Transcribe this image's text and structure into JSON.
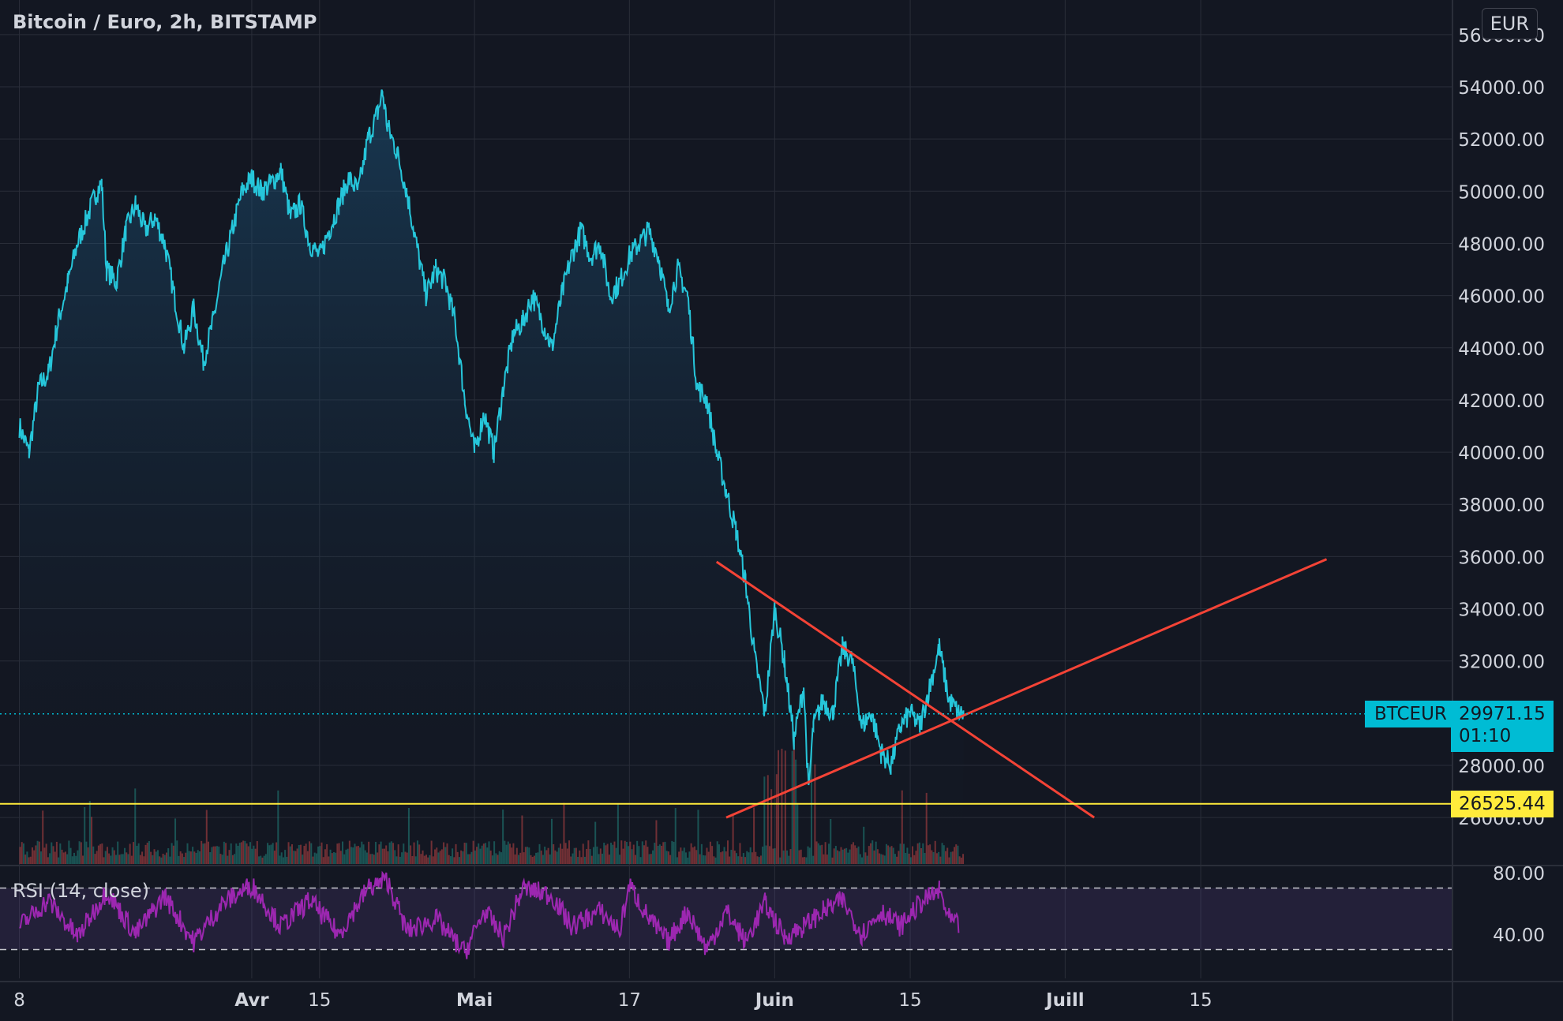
{
  "title": "Bitcoin / Euro, 2h, BITSTAMP",
  "currency": "EUR",
  "symbol": "BTCEUR",
  "rsi_label": "RSI (14, close)",
  "current_price": {
    "value": "29971.15",
    "countdown": "01:10",
    "color": "#00bcd4"
  },
  "support_level": {
    "value": "26525.44",
    "color": "#ffeb3b"
  },
  "colors": {
    "price_line": "#26c6da",
    "trendline": "#f44336",
    "rsi_line": "#9c27b0",
    "background": "#131722",
    "grid": "#2a2e39"
  },
  "chart_data": [
    {
      "type": "line",
      "series": [
        {
          "name": "BTCEUR",
          "values": "price"
        }
      ],
      "y_axis": {
        "ticks": [
          "54000.00",
          "52000.00",
          "50000.00",
          "48000.00",
          "46000.00",
          "44000.00",
          "42000.00",
          "40000.00",
          "38000.00",
          "36000.00",
          "34000.00",
          "32000.00",
          "28000.00"
        ],
        "range": [
          25000,
          56000
        ],
        "top_tick": "56000.00",
        "bottom_tick": "26000.00"
      },
      "x_axis": {
        "ticks": [
          "8",
          "Avr",
          "15",
          "Mai",
          "17",
          "Juin",
          "15",
          "Juill",
          "15"
        ]
      },
      "x_tick_days": [
        0,
        24,
        31,
        47,
        63,
        78,
        92,
        108,
        122
      ],
      "x_range_days": [
        -2,
        148
      ],
      "keypoints": [
        [
          0,
          41000
        ],
        [
          1,
          40000
        ],
        [
          2,
          42500
        ],
        [
          3,
          43000
        ],
        [
          4,
          45000
        ],
        [
          5,
          46500
        ],
        [
          6,
          48000
        ],
        [
          7,
          49000
        ],
        [
          8,
          50000
        ],
        [
          8.5,
          50300
        ],
        [
          9,
          47000
        ],
        [
          10,
          46500
        ],
        [
          11,
          48500
        ],
        [
          12,
          49500
        ],
        [
          13,
          48500
        ],
        [
          14,
          49000
        ],
        [
          15,
          48000
        ],
        [
          16,
          46000
        ],
        [
          17,
          44000
        ],
        [
          18,
          45500
        ],
        [
          19,
          43500
        ],
        [
          20,
          45000
        ],
        [
          21,
          47000
        ],
        [
          22,
          48500
        ],
        [
          23,
          50000
        ],
        [
          24,
          50500
        ],
        [
          25,
          50000
        ],
        [
          26,
          50300
        ],
        [
          27,
          50800
        ],
        [
          28,
          49000
        ],
        [
          29,
          49500
        ],
        [
          30,
          48000
        ],
        [
          31,
          47500
        ],
        [
          32,
          48500
        ],
        [
          33,
          49500
        ],
        [
          34,
          50500
        ],
        [
          35,
          50000
        ],
        [
          36,
          52000
        ],
        [
          37,
          53000
        ],
        [
          37.5,
          53800
        ],
        [
          38,
          52500
        ],
        [
          39,
          51500
        ],
        [
          40,
          50000
        ],
        [
          41,
          48000
        ],
        [
          42,
          46000
        ],
        [
          43,
          47000
        ],
        [
          44,
          46500
        ],
        [
          45,
          45000
        ],
        [
          46,
          42000
        ],
        [
          47,
          40000
        ],
        [
          48,
          41500
        ],
        [
          49,
          40000
        ],
        [
          50,
          42500
        ],
        [
          51,
          44500
        ],
        [
          52,
          45000
        ],
        [
          53,
          46000
        ],
        [
          54,
          45000
        ],
        [
          55,
          44000
        ],
        [
          56,
          46000
        ],
        [
          57,
          47500
        ],
        [
          58,
          48500
        ],
        [
          59,
          47500
        ],
        [
          60,
          48000
        ],
        [
          61,
          46000
        ],
        [
          62,
          46500
        ],
        [
          63,
          47500
        ],
        [
          64,
          48000
        ],
        [
          65,
          48500
        ],
        [
          66,
          47500
        ],
        [
          67,
          45500
        ],
        [
          68,
          47000
        ],
        [
          69,
          46000
        ],
        [
          70,
          42500
        ],
        [
          71,
          42000
        ],
        [
          72,
          40000
        ],
        [
          73,
          38500
        ],
        [
          74,
          37000
        ],
        [
          75,
          35000
        ],
        [
          76,
          32000
        ],
        [
          77,
          30000
        ],
        [
          78,
          34000
        ],
        [
          79,
          32000
        ],
        [
          80,
          29000
        ],
        [
          81,
          31000
        ],
        [
          81.5,
          27000
        ],
        [
          82,
          29500
        ],
        [
          83,
          30500
        ],
        [
          84,
          30000
        ],
        [
          85,
          32500
        ],
        [
          86,
          32000
        ],
        [
          87,
          29500
        ],
        [
          88,
          30000
        ],
        [
          89,
          28500
        ],
        [
          90,
          28000
        ],
        [
          91,
          29500
        ],
        [
          92,
          30000
        ],
        [
          93,
          29500
        ],
        [
          94,
          31000
        ],
        [
          95,
          32500
        ],
        [
          96,
          30500
        ],
        [
          97,
          30000
        ],
        [
          97.5,
          29971.15
        ]
      ],
      "trendlines": [
        {
          "from": [
            72,
            35800
          ],
          "to": [
            111,
            26000
          ]
        },
        {
          "from": [
            73,
            26000
          ],
          "to": [
            135,
            35900
          ]
        }
      ]
    },
    {
      "type": "line",
      "series": [
        {
          "name": "RSI",
          "values": "rsi"
        }
      ],
      "y_axis": {
        "ticks": [
          "80.00",
          "40.00"
        ],
        "range": [
          20,
          85
        ]
      },
      "bands": [
        70,
        30
      ],
      "keypoints": [
        [
          0,
          45
        ],
        [
          3,
          62
        ],
        [
          6,
          38
        ],
        [
          9,
          68
        ],
        [
          12,
          40
        ],
        [
          15,
          65
        ],
        [
          18,
          35
        ],
        [
          21,
          60
        ],
        [
          24,
          72
        ],
        [
          27,
          45
        ],
        [
          30,
          62
        ],
        [
          33,
          40
        ],
        [
          36,
          70
        ],
        [
          38,
          75
        ],
        [
          40,
          42
        ],
        [
          43,
          50
        ],
        [
          46,
          28
        ],
        [
          48,
          55
        ],
        [
          50,
          38
        ],
        [
          52,
          70
        ],
        [
          55,
          65
        ],
        [
          57,
          45
        ],
        [
          60,
          55
        ],
        [
          62,
          42
        ],
        [
          63,
          72
        ],
        [
          65,
          50
        ],
        [
          67,
          35
        ],
        [
          69,
          55
        ],
        [
          71,
          30
        ],
        [
          73,
          55
        ],
        [
          75,
          35
        ],
        [
          77,
          60
        ],
        [
          79,
          38
        ],
        [
          81,
          45
        ],
        [
          83,
          55
        ],
        [
          85,
          62
        ],
        [
          87,
          40
        ],
        [
          89,
          55
        ],
        [
          91,
          45
        ],
        [
          93,
          60
        ],
        [
          95,
          68
        ],
        [
          96,
          50
        ],
        [
          97,
          45
        ]
      ]
    }
  ]
}
